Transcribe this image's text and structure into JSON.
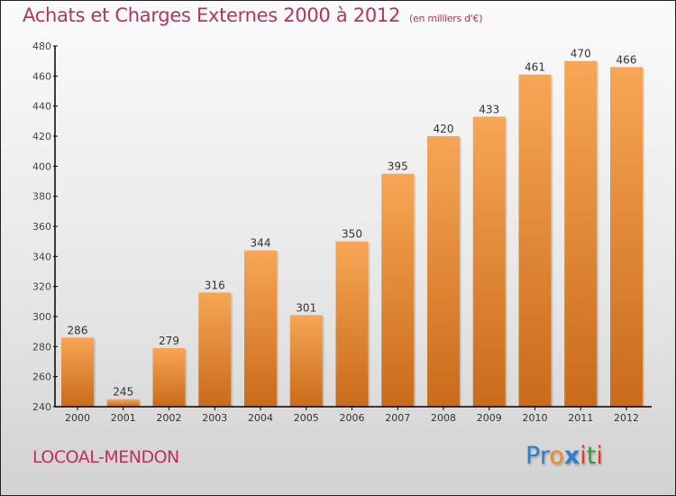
{
  "title": {
    "main": "Achats et Charges Externes 2000 à 2012",
    "unit": "(en milliers d'€)"
  },
  "town": "LOCOAL-MENDON",
  "logo": {
    "letters": [
      {
        "ch": "P",
        "color": "#2f7fd0"
      },
      {
        "ch": "r",
        "color": "#2f7fd0"
      },
      {
        "ch": "o",
        "color": "#f08a1c"
      },
      {
        "ch": "x",
        "color": "#2f7fd0"
      },
      {
        "ch": "i",
        "color": "#e23a2a"
      },
      {
        "ch": "t",
        "color": "#3a9a3a"
      },
      {
        "ch": "i",
        "color": "#e23a2a"
      }
    ]
  },
  "colors": {
    "bar_top": "#f7a655",
    "bar_bottom": "#c96b1a",
    "title": "#b5335c"
  },
  "chart_data": {
    "type": "bar",
    "title": "Achats et Charges Externes 2000 à 2012 (en milliers d'€)",
    "xlabel": "",
    "ylabel": "",
    "categories": [
      "2000",
      "2001",
      "2002",
      "2003",
      "2004",
      "2005",
      "2006",
      "2007",
      "2008",
      "2009",
      "2010",
      "2011",
      "2012"
    ],
    "values": [
      286,
      245,
      279,
      316,
      344,
      301,
      350,
      395,
      420,
      433,
      461,
      470,
      466
    ],
    "ylim": [
      240,
      480
    ],
    "yticks": [
      240,
      260,
      280,
      300,
      320,
      340,
      360,
      380,
      400,
      420,
      440,
      460,
      480
    ],
    "grid": false,
    "legend": "none"
  }
}
